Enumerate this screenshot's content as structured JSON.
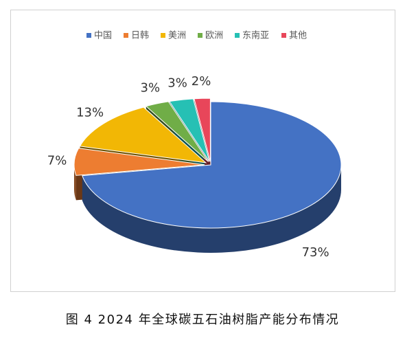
{
  "chart_data": {
    "type": "pie3d",
    "categories": [
      "中国",
      "日韩",
      "美洲",
      "欧洲",
      "东南亚",
      "其他"
    ],
    "values": [
      73,
      7,
      13,
      3,
      3,
      2
    ],
    "value_labels": [
      "73%",
      "7%",
      "13%",
      "3%",
      "3%",
      "2%"
    ],
    "colors": [
      "#4472c4",
      "#ed7d31",
      "#f2b705",
      "#70ad47",
      "#26c0b4",
      "#e8465a"
    ],
    "legend": "top"
  },
  "caption": "图 4  2024 年全球碳五石油树脂产能分布情况"
}
